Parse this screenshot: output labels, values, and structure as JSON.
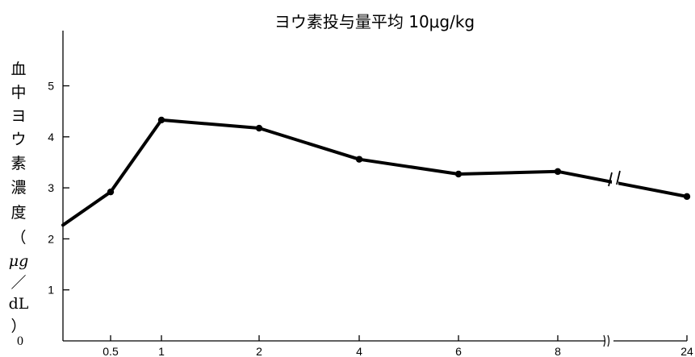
{
  "chart_data": {
    "type": "line",
    "title": "ヨウ素投与量平均 10μg/kg",
    "ylabel": "血中ヨウ素濃度（μg／dL）",
    "ylabel_chars": [
      "血",
      "中",
      "ヨ",
      "ウ",
      "素",
      "濃",
      "度",
      "（",
      "μg",
      "／",
      "dL",
      "）"
    ],
    "xlabel": "",
    "ylim": [
      0,
      6
    ],
    "y_ticks": [
      "1",
      "2",
      "3",
      "4",
      "5"
    ],
    "origin_label": "0",
    "x_ticks": [
      "0.5",
      "1",
      "2",
      "4",
      "6",
      "8",
      "24"
    ],
    "axis_break": "x between 8 and 24",
    "series": [
      {
        "x": [
          "0",
          "0.5",
          "1",
          "2",
          "4",
          "6",
          "8",
          "24"
        ],
        "values": [
          2.27,
          2.92,
          4.33,
          4.17,
          3.56,
          3.27,
          3.32,
          2.83
        ]
      }
    ],
    "grid": false,
    "legend": "none"
  }
}
